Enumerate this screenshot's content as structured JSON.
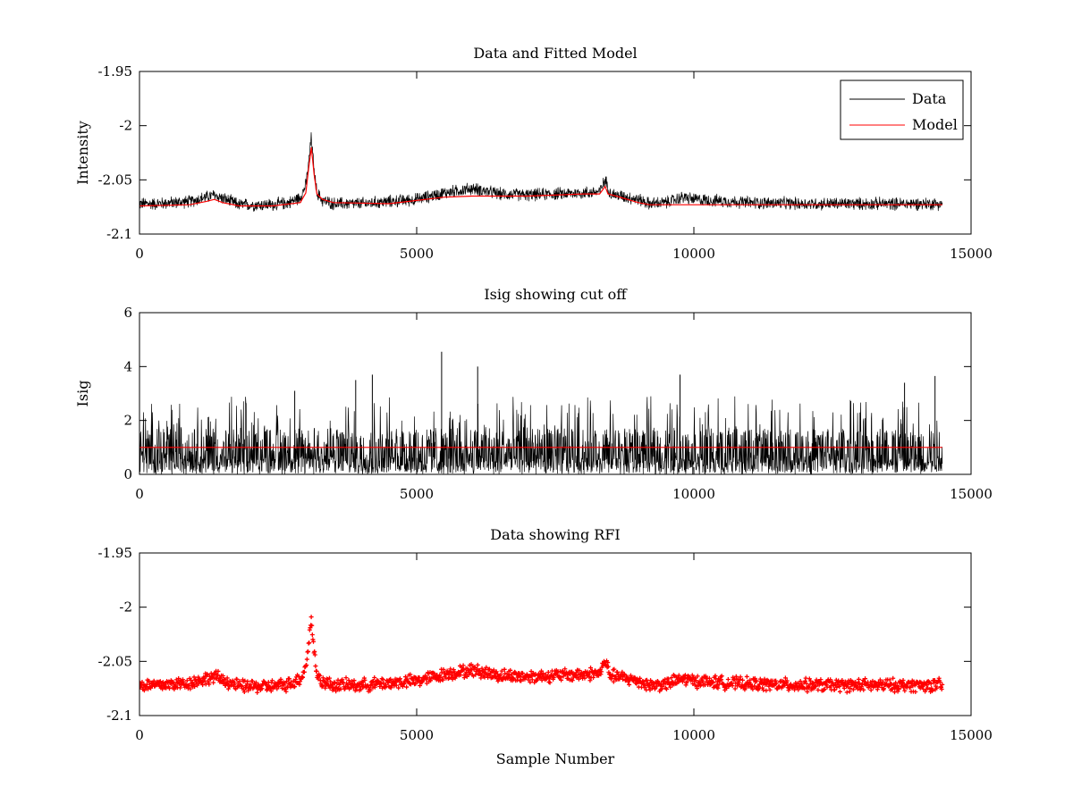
{
  "chart_data": [
    {
      "type": "line",
      "title": "Data and Fitted Model",
      "xlabel": "",
      "ylabel": "Intensity",
      "xlim": [
        0,
        15000
      ],
      "ylim": [
        -2.1,
        -1.95
      ],
      "x_ticks": [
        "0",
        "5000",
        "10000",
        "15000"
      ],
      "y_ticks": [
        "-1.95",
        "-2",
        "-2.05",
        "-2.1"
      ],
      "legend": {
        "position": "top-right",
        "entries": [
          "Data",
          "Model"
        ]
      },
      "series": [
        {
          "name": "Data",
          "color": "#000000",
          "x": [
            0,
            300,
            600,
            900,
            1200,
            1350,
            1500,
            1800,
            2100,
            2400,
            2700,
            2900,
            3000,
            3050,
            3100,
            3150,
            3200,
            3300,
            3500,
            4000,
            4500,
            5000,
            5500,
            6000,
            6200,
            6500,
            7000,
            7500,
            8000,
            8300,
            8400,
            8500,
            9000,
            9200,
            9500,
            9800,
            10000,
            11000,
            12000,
            13000,
            14000,
            14480
          ],
          "y": [
            -2.072,
            -2.072,
            -2.071,
            -2.07,
            -2.066,
            -2.064,
            -2.067,
            -2.073,
            -2.073,
            -2.073,
            -2.071,
            -2.066,
            -2.055,
            -2.035,
            -2.01,
            -2.042,
            -2.062,
            -2.069,
            -2.072,
            -2.072,
            -2.07,
            -2.068,
            -2.062,
            -2.058,
            -2.06,
            -2.063,
            -2.064,
            -2.063,
            -2.062,
            -2.061,
            -2.05,
            -2.063,
            -2.068,
            -2.072,
            -2.071,
            -2.066,
            -2.068,
            -2.071,
            -2.072,
            -2.072,
            -2.072,
            -2.072
          ],
          "noise_amplitude": 0.007
        },
        {
          "name": "Model",
          "color": "#ff0000",
          "x": [
            0,
            900,
            1200,
            1350,
            1500,
            1800,
            2400,
            2900,
            3000,
            3050,
            3100,
            3150,
            3200,
            3300,
            3500,
            4500,
            5000,
            5500,
            6000,
            7000,
            8000,
            8300,
            8400,
            8450,
            8600,
            9000,
            9200,
            9800,
            10000,
            12000,
            14480
          ],
          "y": [
            -2.074,
            -2.073,
            -2.07,
            -2.068,
            -2.071,
            -2.074,
            -2.074,
            -2.071,
            -2.062,
            -2.04,
            -2.02,
            -2.045,
            -2.063,
            -2.068,
            -2.071,
            -2.072,
            -2.069,
            -2.066,
            -2.065,
            -2.065,
            -2.063,
            -2.063,
            -2.056,
            -2.063,
            -2.065,
            -2.071,
            -2.073,
            -2.073,
            -2.073,
            -2.073,
            -2.073
          ]
        }
      ]
    },
    {
      "type": "line",
      "title": "Isig showing cut off",
      "xlabel": "",
      "ylabel": "Isig",
      "xlim": [
        0,
        15000
      ],
      "ylim": [
        0,
        6
      ],
      "x_ticks": [
        "0",
        "5000",
        "10000",
        "15000"
      ],
      "y_ticks": [
        "0",
        "2",
        "4",
        "6"
      ],
      "series": [
        {
          "color": "#000000",
          "x_range": [
            0,
            14480
          ],
          "typical_range": [
            0,
            2.5
          ],
          "peaks": [
            {
              "x": 2800,
              "y": 3.1
            },
            {
              "x": 3900,
              "y": 3.5
            },
            {
              "x": 4200,
              "y": 3.7
            },
            {
              "x": 5450,
              "y": 4.55
            },
            {
              "x": 6100,
              "y": 4.0
            },
            {
              "x": 9750,
              "y": 3.7
            },
            {
              "x": 13800,
              "y": 3.4
            },
            {
              "x": 14350,
              "y": 3.65
            }
          ]
        },
        {
          "color": "#ff0000",
          "x": [
            0,
            14480
          ],
          "y": [
            1.0,
            1.0
          ]
        }
      ]
    },
    {
      "type": "scatter",
      "title": "Data showing RFI",
      "xlabel": "Sample Number",
      "ylabel": "",
      "xlim": [
        0,
        15000
      ],
      "ylim": [
        -2.1,
        -1.95
      ],
      "x_ticks": [
        "0",
        "5000",
        "10000",
        "15000"
      ],
      "y_ticks": [
        "-1.95",
        "-2",
        "-2.05",
        "-2.1"
      ],
      "series": [
        {
          "color": "#ff0000",
          "marker": "plus",
          "x": [
            0,
            300,
            600,
            900,
            1200,
            1350,
            1500,
            1800,
            2100,
            2400,
            2700,
            2900,
            3000,
            3050,
            3100,
            3150,
            3200,
            3300,
            3500,
            4000,
            4500,
            5000,
            5500,
            6000,
            6200,
            6500,
            7000,
            7500,
            8000,
            8300,
            8400,
            8500,
            9000,
            9200,
            9500,
            9800,
            10000,
            11000,
            12000,
            13000,
            14000,
            14480
          ],
          "y": [
            -2.072,
            -2.072,
            -2.071,
            -2.07,
            -2.066,
            -2.064,
            -2.067,
            -2.073,
            -2.073,
            -2.073,
            -2.071,
            -2.066,
            -2.055,
            -2.035,
            -2.01,
            -2.042,
            -2.062,
            -2.069,
            -2.072,
            -2.072,
            -2.07,
            -2.068,
            -2.062,
            -2.058,
            -2.06,
            -2.063,
            -2.064,
            -2.063,
            -2.062,
            -2.061,
            -2.05,
            -2.063,
            -2.068,
            -2.072,
            -2.071,
            -2.066,
            -2.068,
            -2.071,
            -2.072,
            -2.072,
            -2.072,
            -2.072
          ],
          "noise_amplitude": 0.007
        }
      ]
    }
  ]
}
